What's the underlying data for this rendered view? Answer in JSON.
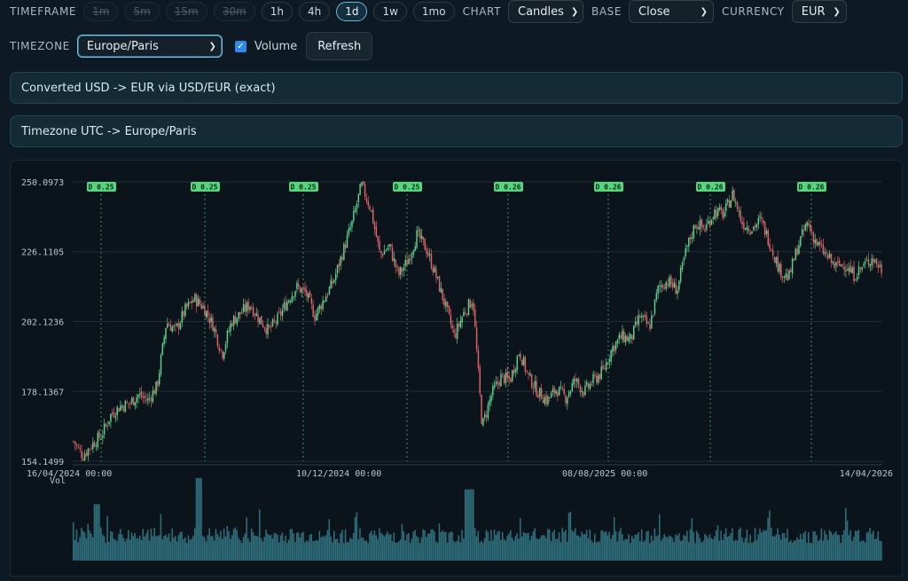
{
  "toolbar": {
    "timeframe_label": "TIMEFRAME",
    "timeframes": [
      {
        "label": "1m",
        "state": "disabled"
      },
      {
        "label": "5m",
        "state": "disabled"
      },
      {
        "label": "15m",
        "state": "disabled"
      },
      {
        "label": "30m",
        "state": "disabled"
      },
      {
        "label": "1h",
        "state": "enabled"
      },
      {
        "label": "4h",
        "state": "enabled"
      },
      {
        "label": "1d",
        "state": "active"
      },
      {
        "label": "1w",
        "state": "enabled"
      },
      {
        "label": "1mo",
        "state": "enabled"
      }
    ],
    "chart_label": "CHART",
    "chart_value": "Candles",
    "base_label": "BASE",
    "base_value": "Close",
    "currency_label": "CURRENCY",
    "currency_value": "EUR",
    "timezone_label": "TIMEZONE",
    "timezone_value": "Europe/Paris",
    "volume_label": "Volume",
    "volume_checked": true,
    "refresh_label": "Refresh"
  },
  "banners": {
    "conversion": "Converted USD -> EUR via USD/EUR (exact)",
    "timezone": "Timezone UTC -> Europe/Paris"
  },
  "colors": {
    "up": "#5fd38d",
    "down": "#e0626a",
    "volume": "#2f6f7c",
    "dividend_marker": "#54d57e",
    "accent": "#6fb6d6"
  },
  "chart_data": {
    "type": "candlestick",
    "y_ticks": [
      "250.0973",
      "226.1105",
      "202.1236",
      "178.1367",
      "154.1499"
    ],
    "ylim": [
      154.1499,
      250.0973
    ],
    "x_ticks": [
      "16/04/2024 00:00",
      "10/12/2024 00:00",
      "08/08/2025 00:00",
      "14/04/2026"
    ],
    "volume_label": "Vol",
    "dividends": [
      "D 0.25",
      "D 0.25",
      "D 0.25",
      "D 0.25",
      "D 0.26",
      "D 0.26",
      "D 0.26",
      "D 0.26"
    ],
    "close_path_approx": [
      [
        0,
        161
      ],
      [
        1,
        156
      ],
      [
        2,
        160
      ],
      [
        3,
        163
      ],
      [
        4,
        170
      ],
      [
        5,
        173
      ],
      [
        6,
        174
      ],
      [
        7,
        177
      ],
      [
        8,
        175
      ],
      [
        9,
        180
      ],
      [
        10,
        202
      ],
      [
        11,
        199
      ],
      [
        12,
        206
      ],
      [
        13,
        210
      ],
      [
        14,
        207
      ],
      [
        15,
        201
      ],
      [
        16,
        191
      ],
      [
        17,
        202
      ],
      [
        18,
        205
      ],
      [
        19,
        208
      ],
      [
        20,
        203
      ],
      [
        21,
        199
      ],
      [
        22,
        203
      ],
      [
        23,
        209
      ],
      [
        24,
        214
      ],
      [
        25,
        212
      ],
      [
        26,
        204
      ],
      [
        27,
        210
      ],
      [
        28,
        216
      ],
      [
        29,
        226
      ],
      [
        30,
        236
      ],
      [
        31,
        249
      ],
      [
        32,
        241
      ],
      [
        33,
        225
      ],
      [
        34,
        228
      ],
      [
        35,
        218
      ],
      [
        36,
        223
      ],
      [
        37,
        232
      ],
      [
        38,
        227
      ],
      [
        39,
        218
      ],
      [
        40,
        208
      ],
      [
        41,
        197
      ],
      [
        42,
        205
      ],
      [
        43,
        210
      ],
      [
        44,
        166
      ],
      [
        45,
        177
      ],
      [
        46,
        183
      ],
      [
        47,
        182
      ],
      [
        48,
        192
      ],
      [
        49,
        183
      ],
      [
        50,
        178
      ],
      [
        51,
        175
      ],
      [
        52,
        179
      ],
      [
        53,
        176
      ],
      [
        54,
        182
      ],
      [
        55,
        178
      ],
      [
        56,
        182
      ],
      [
        57,
        185
      ],
      [
        58,
        193
      ],
      [
        59,
        197
      ],
      [
        60,
        196
      ],
      [
        61,
        204
      ],
      [
        62,
        200
      ],
      [
        63,
        214
      ],
      [
        64,
        216
      ],
      [
        65,
        213
      ],
      [
        66,
        227
      ],
      [
        67,
        236
      ],
      [
        68,
        234
      ],
      [
        69,
        240
      ],
      [
        70,
        239
      ],
      [
        71,
        246
      ],
      [
        72,
        236
      ],
      [
        73,
        234
      ],
      [
        74,
        237
      ],
      [
        75,
        229
      ],
      [
        76,
        220
      ],
      [
        77,
        217
      ],
      [
        78,
        228
      ],
      [
        79,
        236
      ],
      [
        80,
        229
      ],
      [
        81,
        225
      ],
      [
        82,
        221
      ],
      [
        83,
        222
      ],
      [
        84,
        218
      ],
      [
        85,
        221
      ],
      [
        86,
        224
      ],
      [
        87,
        220
      ]
    ]
  }
}
